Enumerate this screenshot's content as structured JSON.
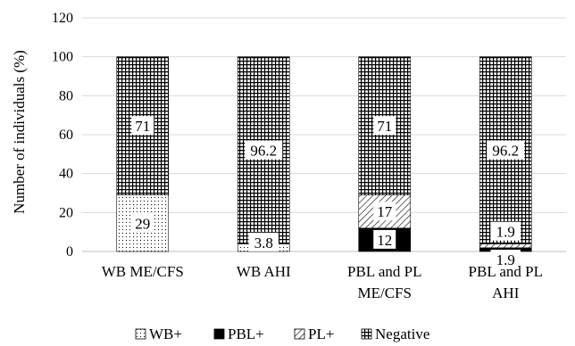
{
  "chart_data": {
    "type": "bar",
    "stacked": true,
    "ylabel": "Number of individuals (%)",
    "ylim": [
      0,
      120
    ],
    "yticks": [
      "0",
      "20",
      "40",
      "60",
      "80",
      "100",
      "120"
    ],
    "categories": [
      [
        "WB ME/CFS"
      ],
      [
        "WB AHI"
      ],
      [
        "PBL and PL",
        "ME/CFS"
      ],
      [
        "PBL and PL",
        "AHI"
      ]
    ],
    "series": [
      {
        "name": "WB+",
        "pattern": "dots",
        "values": [
          29,
          3.8,
          0,
          0
        ],
        "labels": [
          "29",
          "3.8",
          "",
          ""
        ]
      },
      {
        "name": "PBL+",
        "pattern": "solid",
        "values": [
          0,
          0,
          12,
          1.9
        ],
        "labels": [
          "",
          "",
          "12",
          "1.9"
        ]
      },
      {
        "name": "PL+",
        "pattern": "diagonal",
        "values": [
          0,
          0,
          17,
          1.9
        ],
        "labels": [
          "",
          "",
          "17",
          "1.9"
        ]
      },
      {
        "name": "Negative",
        "pattern": "grid",
        "values": [
          71,
          96.2,
          71,
          96.2
        ],
        "labels": [
          "71",
          "96.2",
          "71",
          "96.2"
        ]
      }
    ],
    "legend_position": "bottom",
    "grid": "horizontal"
  }
}
